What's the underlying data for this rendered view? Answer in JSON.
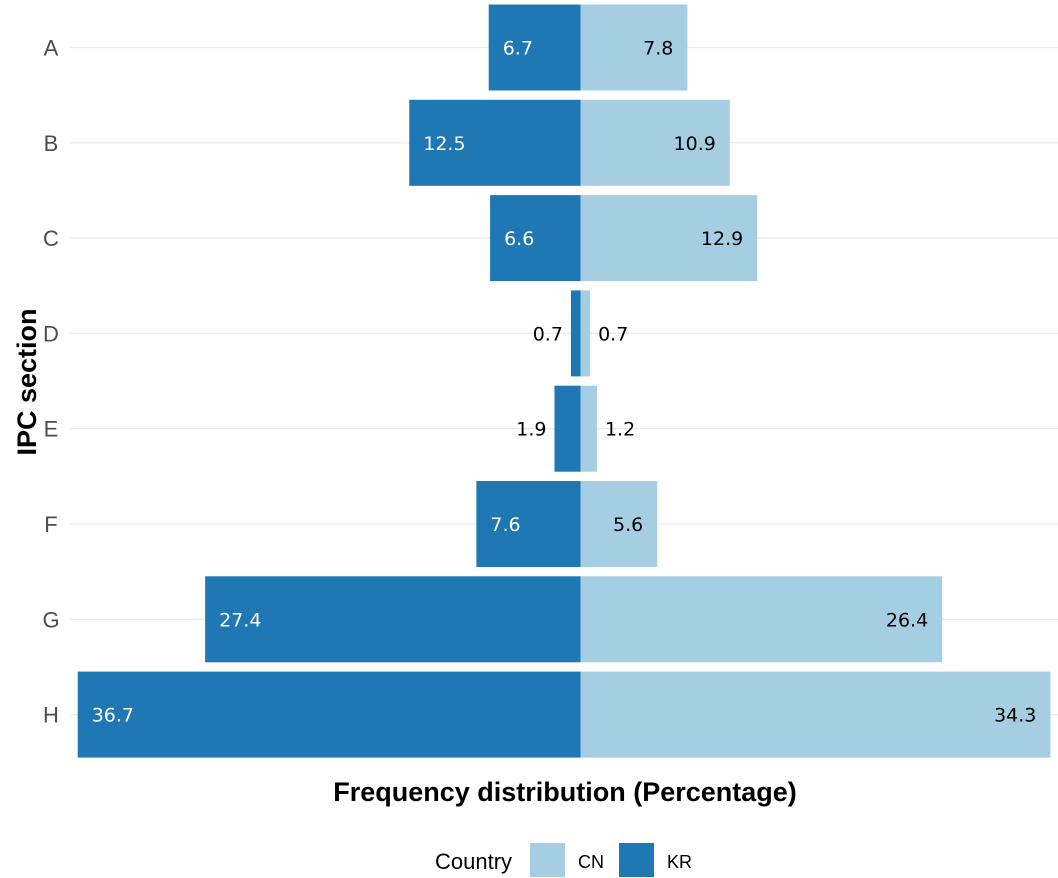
{
  "chart_data": {
    "type": "bar",
    "orientation": "horizontal-diverging",
    "categories": [
      "A",
      "B",
      "C",
      "D",
      "E",
      "F",
      "G",
      "H"
    ],
    "series": [
      {
        "name": "KR",
        "color": "#1f78b4",
        "label_color": "#ffffff",
        "side": "left",
        "values": [
          6.7,
          12.5,
          6.6,
          0.7,
          1.9,
          7.6,
          27.4,
          36.7
        ]
      },
      {
        "name": "CN",
        "color": "#a6cee3",
        "label_color": "#000000",
        "side": "right",
        "values": [
          7.8,
          10.9,
          12.9,
          0.7,
          1.2,
          5.6,
          26.4,
          34.3
        ]
      }
    ],
    "xlabel": "Frequency distribution (Percentage)",
    "ylabel": "IPC section",
    "legend": {
      "title": "Country",
      "position": "bottom",
      "entries": [
        {
          "name": "CN",
          "color": "#a6cee3"
        },
        {
          "name": "KR",
          "color": "#1f78b4"
        }
      ]
    },
    "grid": "horizontal-major",
    "grid_color": "#ebebeb"
  }
}
